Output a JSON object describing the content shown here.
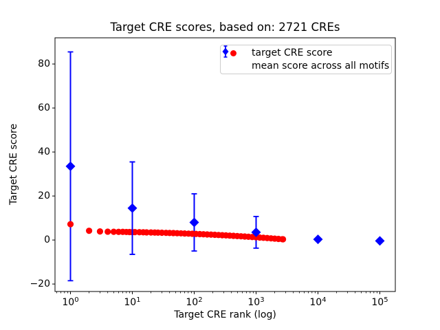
{
  "chart_data": {
    "type": "scatter",
    "title": "Target CRE scores, based on: 2721 CREs",
    "xlabel": "Target CRE rank (log)",
    "ylabel": "Target CRE score",
    "x_scale": "log",
    "grid": false,
    "legend_position": "upper right",
    "xlim_log10": [
      -0.25,
      5.25
    ],
    "ylim": [
      -23.4,
      91.9
    ],
    "x_ticks": [
      {
        "value": 1,
        "label": "10^0"
      },
      {
        "value": 10,
        "label": "10^1"
      },
      {
        "value": 100,
        "label": "10^2"
      },
      {
        "value": 1000,
        "label": "10^3"
      },
      {
        "value": 10000,
        "label": "10^4"
      },
      {
        "value": 100000,
        "label": "10^5"
      }
    ],
    "y_ticks": [
      {
        "value": -20,
        "label": "−20"
      },
      {
        "value": 0,
        "label": "0"
      },
      {
        "value": 20,
        "label": "20"
      },
      {
        "value": 40,
        "label": "40"
      },
      {
        "value": 60,
        "label": "60"
      },
      {
        "value": 80,
        "label": "80"
      }
    ],
    "series": [
      {
        "name": "target CRE score",
        "marker": "circle",
        "color": "#ff0000",
        "points": [
          [
            1,
            7.2
          ],
          [
            2,
            4.2
          ],
          [
            3,
            3.9
          ],
          [
            4,
            3.8
          ],
          [
            5,
            3.75
          ],
          [
            6,
            3.7
          ],
          [
            7,
            3.7
          ],
          [
            8,
            3.65
          ],
          [
            9,
            3.62
          ],
          [
            10,
            3.6
          ],
          [
            11,
            3.58
          ],
          [
            13,
            3.55
          ],
          [
            15,
            3.51
          ],
          [
            17,
            3.48
          ],
          [
            20,
            3.44
          ],
          [
            23,
            3.4
          ],
          [
            26,
            3.36
          ],
          [
            30,
            3.31
          ],
          [
            35,
            3.26
          ],
          [
            40,
            3.21
          ],
          [
            46,
            3.15
          ],
          [
            53,
            3.1
          ],
          [
            61,
            3.03
          ],
          [
            70,
            2.97
          ],
          [
            81,
            2.9
          ],
          [
            93,
            2.84
          ],
          [
            107,
            2.77
          ],
          [
            123,
            2.69
          ],
          [
            141,
            2.62
          ],
          [
            162,
            2.54
          ],
          [
            187,
            2.45
          ],
          [
            215,
            2.37
          ],
          [
            247,
            2.28
          ],
          [
            284,
            2.19
          ],
          [
            326,
            2.1
          ],
          [
            375,
            2.0
          ],
          [
            431,
            1.9
          ],
          [
            496,
            1.8
          ],
          [
            570,
            1.7
          ],
          [
            655,
            1.59
          ],
          [
            753,
            1.48
          ],
          [
            866,
            1.37
          ],
          [
            996,
            1.25
          ],
          [
            1145,
            1.13
          ],
          [
            1316,
            1.02
          ],
          [
            1513,
            0.89
          ],
          [
            1740,
            0.76
          ],
          [
            2000,
            0.64
          ],
          [
            2300,
            0.5
          ],
          [
            2645,
            0.37
          ],
          [
            2721,
            0.34
          ]
        ]
      },
      {
        "name": "mean score across all motifs",
        "marker": "diamond",
        "color": "#0000ff",
        "points": [
          [
            1,
            33.5
          ],
          [
            10,
            14.5
          ],
          [
            100,
            8.0
          ],
          [
            1000,
            3.5
          ],
          [
            10000,
            0.3
          ],
          [
            100000,
            -0.4
          ]
        ],
        "yerr": [
          52,
          21,
          13,
          7.2,
          0,
          0
        ]
      }
    ]
  },
  "legend": {
    "items": [
      {
        "label": "target CRE score",
        "marker": "circle",
        "color": "#ff0000"
      },
      {
        "label": "mean score across all motifs",
        "marker": "diamond-errorbar",
        "color": "#0000ff"
      }
    ]
  },
  "style": {
    "axis_color": "#000000",
    "background": "#ffffff"
  }
}
